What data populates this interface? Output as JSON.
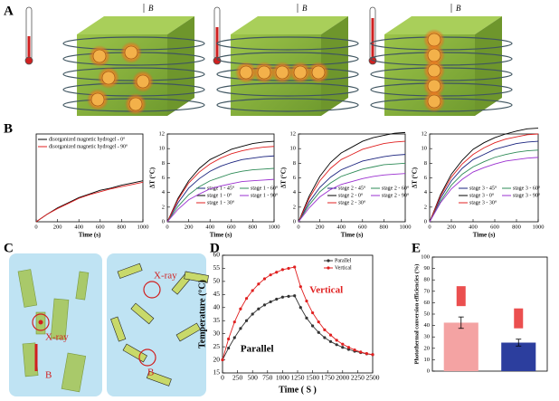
{
  "figure": {
    "panel_labels": [
      "A",
      "B",
      "C",
      "D",
      "E"
    ],
    "field_label": "B",
    "panel_c_labels": [
      "X-ray",
      "B",
      "X-ray",
      "B"
    ]
  },
  "chart_data": [
    {
      "type": "line",
      "x_label": "Time (s)",
      "xlim": [
        0,
        1000
      ],
      "xticks": [
        0,
        200,
        400,
        600,
        800,
        1000
      ],
      "ylim": [
        0,
        12
      ],
      "x": [
        0,
        100,
        200,
        300,
        400,
        500,
        600,
        700,
        800,
        900,
        1000
      ],
      "series": [
        {
          "name": "disorganized magnetic hydrogel - 0°",
          "color": "#000000",
          "values": [
            0,
            1.0,
            1.9,
            2.6,
            3.3,
            3.8,
            4.3,
            4.6,
            5.0,
            5.3,
            5.6
          ]
        },
        {
          "name": "disorganized magnetic hydrogel - 90°",
          "color": "#e02020",
          "values": [
            0,
            1.0,
            1.8,
            2.5,
            3.2,
            3.7,
            4.1,
            4.5,
            4.8,
            5.1,
            5.4
          ]
        }
      ]
    },
    {
      "type": "line",
      "x_label": "Time (s)",
      "y_label": "ΔT (°C)",
      "xlim": [
        0,
        1000
      ],
      "xticks": [
        0,
        200,
        400,
        600,
        800,
        1000
      ],
      "ylim": [
        0,
        12
      ],
      "yticks": [
        0,
        2,
        4,
        6,
        8,
        10,
        12
      ],
      "x": [
        0,
        100,
        200,
        300,
        400,
        500,
        600,
        700,
        800,
        900,
        1000
      ],
      "series": [
        {
          "name": "stage 1 - 45°",
          "color": "#1a237e",
          "values": [
            0,
            2.6,
            4.6,
            5.9,
            6.9,
            7.6,
            8.1,
            8.5,
            8.7,
            8.9,
            9
          ]
        },
        {
          "name": "stage 1 - 0°",
          "color": "#000000",
          "values": [
            0,
            3.2,
            5.6,
            7.3,
            8.5,
            9.2,
            9.9,
            10.3,
            10.7,
            10.9,
            11
          ]
        },
        {
          "name": "stage 1 - 30°",
          "color": "#e02020",
          "values": [
            0,
            3.0,
            5.3,
            6.8,
            7.9,
            8.7,
            9.3,
            9.7,
            10.0,
            10.2,
            10.3
          ]
        },
        {
          "name": "stage 1 - 60°",
          "color": "#2e8b57",
          "values": [
            0,
            2.1,
            3.7,
            4.8,
            5.6,
            6.1,
            6.6,
            6.9,
            7.1,
            7.2,
            7.3
          ]
        },
        {
          "name": "stage 1 - 90°",
          "color": "#9b30d0",
          "values": [
            0,
            1.7,
            3.0,
            3.8,
            4.5,
            4.9,
            5.2,
            5.5,
            5.6,
            5.7,
            5.8
          ]
        }
      ]
    },
    {
      "type": "line",
      "x_label": "Time (s)",
      "y_label": "ΔT (°C)",
      "xlim": [
        0,
        1000
      ],
      "xticks": [
        0,
        200,
        400,
        600,
        800,
        1000
      ],
      "ylim": [
        0,
        12
      ],
      "yticks": [
        0,
        2,
        4,
        6,
        8,
        10,
        12
      ],
      "x": [
        0,
        100,
        200,
        300,
        400,
        500,
        600,
        700,
        800,
        900,
        1000
      ],
      "series": [
        {
          "name": "stage 2 - 45°",
          "color": "#1a237e",
          "values": [
            0,
            2.7,
            4.7,
            6.1,
            7.1,
            7.7,
            8.3,
            8.6,
            8.9,
            9.1,
            9.2
          ]
        },
        {
          "name": "stage 2 - 0°",
          "color": "#000000",
          "values": [
            0,
            3.5,
            6.2,
            8.1,
            9.4,
            10.2,
            11.0,
            11.5,
            11.8,
            12.1,
            12.2
          ]
        },
        {
          "name": "stage 2 - 30°",
          "color": "#e02020",
          "values": [
            0,
            3.2,
            5.6,
            7.3,
            8.5,
            9.2,
            9.9,
            10.3,
            10.7,
            10.9,
            11
          ]
        },
        {
          "name": "stage 2 - 60°",
          "color": "#2e8b57",
          "values": [
            0,
            2.3,
            4.1,
            5.3,
            6.2,
            6.7,
            7.2,
            7.5,
            7.8,
            7.9,
            8
          ]
        },
        {
          "name": "stage 2 - 90°",
          "color": "#9b30d0",
          "values": [
            0,
            1.9,
            3.4,
            4.4,
            5.1,
            5.5,
            5.9,
            6.2,
            6.4,
            6.5,
            6.6
          ]
        }
      ]
    },
    {
      "type": "line",
      "x_label": "Time (s)",
      "y_label": "ΔT (°C)",
      "xlim": [
        0,
        1000
      ],
      "xticks": [
        0,
        200,
        400,
        600,
        800,
        1000
      ],
      "ylim": [
        0,
        12
      ],
      "yticks": [
        0,
        2,
        4,
        6,
        8,
        10,
        12
      ],
      "x": [
        0,
        100,
        200,
        300,
        400,
        500,
        600,
        700,
        800,
        900,
        1000
      ],
      "series": [
        {
          "name": "stage 3 - 45°",
          "color": "#1a237e",
          "values": [
            0,
            3.2,
            5.6,
            7.3,
            8.5,
            9.2,
            9.9,
            10.3,
            10.7,
            10.9,
            11
          ]
        },
        {
          "name": "stage 3 - 0°",
          "color": "#000000",
          "values": [
            0,
            3.7,
            6.5,
            8.4,
            9.9,
            10.8,
            11.5,
            12.0,
            12.4,
            12.7,
            12.8
          ]
        },
        {
          "name": "stage 3 - 30°",
          "color": "#e02020",
          "values": [
            0,
            3.5,
            6.1,
            7.9,
            9.2,
            10.1,
            10.8,
            11.3,
            11.6,
            11.9,
            12
          ]
        },
        {
          "name": "stage 3 - 60°",
          "color": "#2e8b57",
          "values": [
            0,
            2.8,
            5.0,
            6.5,
            7.5,
            8.2,
            8.8,
            9.2,
            9.5,
            9.7,
            9.8
          ]
        },
        {
          "name": "stage 3 - 90°",
          "color": "#9b30d0",
          "values": [
            0,
            2.6,
            4.5,
            5.8,
            6.8,
            7.4,
            7.9,
            8.3,
            8.5,
            8.7,
            8.8
          ]
        }
      ]
    },
    {
      "type": "line",
      "markers": true,
      "x_label": "Time ( S )",
      "y_label": "Temperature (°C)",
      "xlim": [
        0,
        2500
      ],
      "xticks": [
        0,
        250,
        500,
        750,
        1000,
        1250,
        1500,
        1750,
        2000,
        2250,
        2500
      ],
      "ylim": [
        15,
        60
      ],
      "yticks": [
        15,
        20,
        25,
        30,
        35,
        40,
        45,
        50,
        55,
        60
      ],
      "x": [
        0,
        100,
        200,
        300,
        400,
        500,
        600,
        700,
        800,
        900,
        1000,
        1100,
        1200,
        1300,
        1400,
        1500,
        1600,
        1700,
        1800,
        1900,
        2000,
        2100,
        2200,
        2300,
        2400,
        2500
      ],
      "series": [
        {
          "name": "Parallel",
          "color": "#333333",
          "values": [
            20,
            24.5,
            28.5,
            32,
            35,
            37.5,
            39.5,
            41,
            42.2,
            43.2,
            44,
            44.3,
            44.5,
            40,
            36,
            33,
            30.5,
            28.5,
            27,
            25.8,
            24.8,
            24,
            23.3,
            22.8,
            22.3,
            22
          ]
        },
        {
          "name": "Vertical",
          "color": "#e02020",
          "values": [
            20,
            28,
            34.5,
            39.5,
            43.5,
            46.5,
            49,
            51,
            52.5,
            53.5,
            54.5,
            55,
            55.5,
            48,
            42.5,
            38,
            34.5,
            31.5,
            29.5,
            27.5,
            26,
            24.8,
            23.8,
            23,
            22.4,
            22
          ]
        }
      ],
      "annotations": [
        {
          "text": "Vertical",
          "color": "#e02020"
        },
        {
          "text": "Parallel",
          "color": "#000000"
        }
      ]
    },
    {
      "type": "bar",
      "y_label": "Photothermal conversion efficiencies (%)",
      "ylim": [
        0,
        100
      ],
      "yticks": [
        0,
        10,
        20,
        30,
        40,
        50,
        60,
        70,
        80,
        90,
        100
      ],
      "categories": [
        null,
        null
      ],
      "values": [
        42.5,
        25
      ],
      "errors": [
        5,
        3
      ],
      "colors": [
        "#f4a3a3",
        "#2c3e9e"
      ]
    }
  ]
}
